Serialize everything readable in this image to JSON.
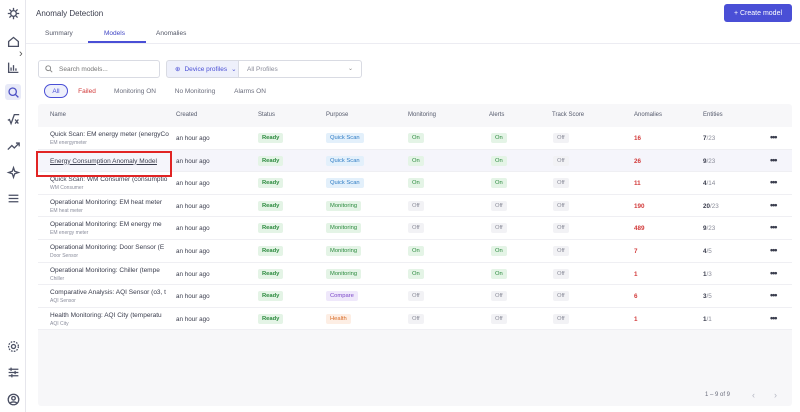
{
  "sidebar": {
    "icons": [
      "logo-icon",
      "home-icon",
      "bar-chart-icon",
      "search-icon",
      "sqrt-icon",
      "trend-icon",
      "sparkle-icon",
      "menu-icon",
      "gear-icon",
      "sliders-icon",
      "user-icon"
    ]
  },
  "header": {
    "title": "Anomaly Detection",
    "create_label": "+ Create model",
    "tabs": [
      "Summary",
      "Models",
      "Anomalies"
    ]
  },
  "search": {
    "placeholder": "Search models..."
  },
  "device_profiles": {
    "label": "Device profiles",
    "selected": "All Profiles"
  },
  "filters": [
    "All",
    "Failed",
    "Monitoring ON",
    "No Monitoring",
    "Alarms ON"
  ],
  "table": {
    "headers": [
      "Name",
      "Created",
      "Status",
      "Purpose",
      "Monitoring",
      "Alerts",
      "Track Score",
      "Anomalies",
      "Entities"
    ],
    "rows": [
      {
        "name": "Quick Scan: EM energy meter (energyCo",
        "sub": "EM energymeter",
        "created": "an hour ago",
        "status": "Ready",
        "purpose": "Quick Scan",
        "monitoring": "On",
        "alerts": "On",
        "track": "Off",
        "anomalies": "16",
        "ent_a": "7",
        "ent_b": "/23"
      },
      {
        "name": "Energy Consumption Anomaly Model",
        "sub": "",
        "created": "an hour ago",
        "status": "Ready",
        "purpose": "Quick Scan",
        "monitoring": "On",
        "alerts": "On",
        "track": "Off",
        "anomalies": "26",
        "ent_a": "9",
        "ent_b": "/23"
      },
      {
        "name": "Quick Scan: WM Consumer (consumptio",
        "sub": "WM Consumer",
        "created": "an hour ago",
        "status": "Ready",
        "purpose": "Quick Scan",
        "monitoring": "On",
        "alerts": "On",
        "track": "Off",
        "anomalies": "11",
        "ent_a": "4",
        "ent_b": "/14"
      },
      {
        "name": "Operational Monitoring: EM heat meter",
        "sub": "EM heat meter",
        "created": "an hour ago",
        "status": "Ready",
        "purpose": "Monitoring",
        "monitoring": "Off",
        "alerts": "Off",
        "track": "Off",
        "anomalies": "190",
        "ent_a": "20",
        "ent_b": "/23"
      },
      {
        "name": "Operational Monitoring: EM energy me",
        "sub": "EM energy meter",
        "created": "an hour ago",
        "status": "Ready",
        "purpose": "Monitoring",
        "monitoring": "Off",
        "alerts": "Off",
        "track": "Off",
        "anomalies": "489",
        "ent_a": "9",
        "ent_b": "/23"
      },
      {
        "name": "Operational Monitoring: Door Sensor (E",
        "sub": "Door Sensor",
        "created": "an hour ago",
        "status": "Ready",
        "purpose": "Monitoring",
        "monitoring": "On",
        "alerts": "On",
        "track": "Off",
        "anomalies": "7",
        "ent_a": "4",
        "ent_b": "/5"
      },
      {
        "name": "Operational Monitoring: Chiller (tempe",
        "sub": "Chiller",
        "created": "an hour ago",
        "status": "Ready",
        "purpose": "Monitoring",
        "monitoring": "On",
        "alerts": "On",
        "track": "Off",
        "anomalies": "1",
        "ent_a": "1",
        "ent_b": "/3"
      },
      {
        "name": "Comparative Analysis: AQI Sensor (o3, t",
        "sub": "AQI Sensor",
        "created": "an hour ago",
        "status": "Ready",
        "purpose": "Compare",
        "monitoring": "Off",
        "alerts": "Off",
        "track": "Off",
        "anomalies": "6",
        "ent_a": "3",
        "ent_b": "/5"
      },
      {
        "name": "Health Monitoring: AQI City (temperatu",
        "sub": "AQI City",
        "created": "an hour ago",
        "status": "Ready",
        "purpose": "Health",
        "monitoring": "Off",
        "alerts": "Off",
        "track": "Off",
        "anomalies": "1",
        "ent_a": "1",
        "ent_b": "/1"
      }
    ]
  },
  "pagination": {
    "text": "1 – 9 of 9"
  }
}
